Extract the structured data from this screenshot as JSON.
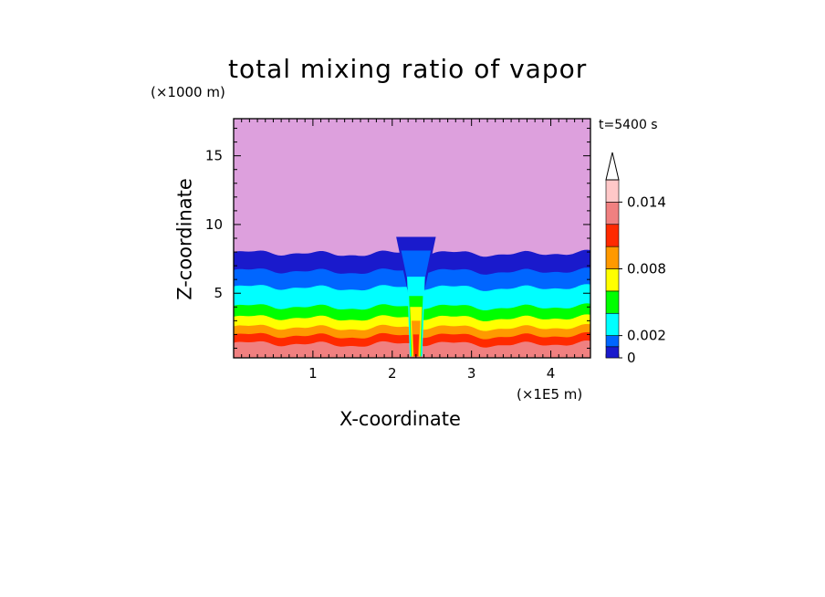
{
  "chart_data": {
    "type": "heatmap",
    "title": "total mixing ratio of vapor",
    "time_label": "t=5400 s",
    "xlabel": "X-coordinate",
    "ylabel": "Z-coordinate",
    "x_unit": "(×1E5 m)",
    "y_unit": "(×1000 m)",
    "xlim": [
      0,
      4.5
    ],
    "ylim": [
      0.3,
      17.7
    ],
    "x_ticks": [
      "1",
      "2",
      "3",
      "4"
    ],
    "y_ticks": [
      "5",
      "10",
      "15"
    ],
    "colorbar": {
      "ticks": [
        "0",
        "0.002",
        "0.008",
        "0.014"
      ],
      "levels": [
        0,
        0.001,
        0.002,
        0.004,
        0.006,
        0.008,
        0.01,
        0.012,
        0.014,
        0.016
      ],
      "extend": "max",
      "colors": [
        "#a9a9a9",
        "#1414a0",
        "#0a3ce6",
        "#1ea0ff",
        "#00ebff",
        "#00e600",
        "#e6e600",
        "#ff8c00",
        "#e60000",
        "#ff6e6e",
        "#ffb4b4",
        "#ffffff"
      ]
    },
    "layers": [
      {
        "level": 0.016,
        "top_z": 1.3,
        "color": "#f08080"
      },
      {
        "level": 0.014,
        "top_z": 1.9,
        "color": "#ff2a00"
      },
      {
        "level": 0.012,
        "top_z": 2.5,
        "color": "#ff9900"
      },
      {
        "level": 0.01,
        "top_z": 3.2,
        "color": "#ffff00"
      },
      {
        "level": 0.008,
        "top_z": 4.0,
        "color": "#00ff00"
      },
      {
        "level": 0.006,
        "top_z": 5.4,
        "color": "#00ffff"
      },
      {
        "level": 0.004,
        "top_z": 6.6,
        "color": "#0066ff"
      },
      {
        "level": 0.002,
        "top_z": 7.9,
        "color": "#1a1acc"
      },
      {
        "level": 0,
        "top_z": 17.7,
        "color": "#dda0dd"
      }
    ],
    "plume": {
      "x_center": 2.3,
      "top_z": 9.1,
      "half_width": 0.25
    }
  }
}
